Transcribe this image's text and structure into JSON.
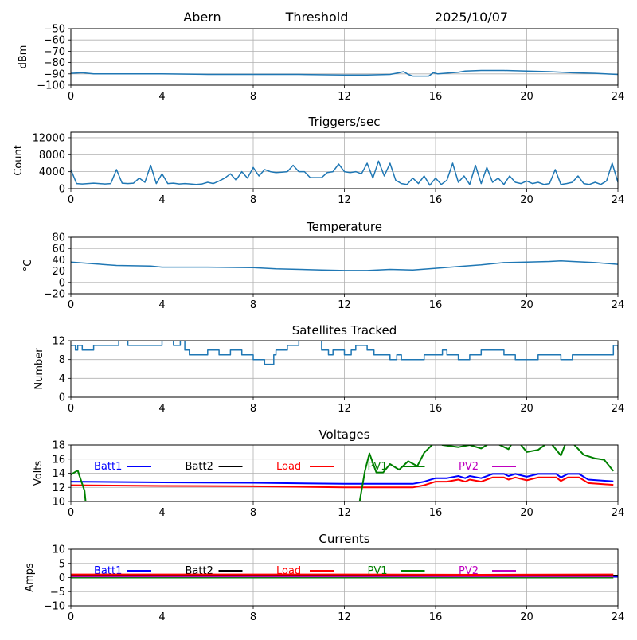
{
  "header": {
    "station": "Abern",
    "mode": "Threshold",
    "date": "2025/10/07"
  },
  "chart_data": [
    {
      "type": "line",
      "title": "",
      "ylabel": "dBm",
      "xlabel": "",
      "xlim": [
        0,
        24
      ],
      "ylim": [
        -100,
        -50
      ],
      "xticks": [
        0,
        4,
        8,
        12,
        16,
        20,
        24
      ],
      "yticks": [
        -100,
        -90,
        -80,
        -70,
        -60,
        -50
      ],
      "ytick_labels": [
        "−100",
        "−90",
        "−80",
        "−70",
        "−60",
        "−50"
      ],
      "grid": true,
      "series": [
        {
          "name": "Threshold",
          "color": "#1f77b4",
          "x": [
            0,
            0.5,
            1,
            2,
            4,
            6,
            8,
            10,
            12,
            13,
            14,
            14.4,
            14.6,
            14.8,
            15,
            15.7,
            15.9,
            16.1,
            17,
            17.3,
            18,
            19,
            20,
            21,
            22,
            23,
            24
          ],
          "y": [
            -89.5,
            -89,
            -90,
            -90,
            -90,
            -90.5,
            -90.5,
            -90.5,
            -91,
            -91,
            -90.5,
            -89,
            -88,
            -90.5,
            -92,
            -92,
            -89,
            -90,
            -88.5,
            -87.5,
            -87,
            -87,
            -87.5,
            -88,
            -89,
            -89.5,
            -90.5
          ]
        }
      ]
    },
    {
      "type": "line",
      "title": "Triggers/sec",
      "ylabel": "Count",
      "xlabel": "",
      "xlim": [
        0,
        24
      ],
      "ylim": [
        0,
        13300
      ],
      "xticks": [
        0,
        4,
        8,
        12,
        16,
        20,
        24
      ],
      "yticks": [
        0,
        4000,
        8000,
        12000
      ],
      "ytick_labels": [
        "0",
        "4000",
        "8000",
        "12000"
      ],
      "grid": true,
      "series": [
        {
          "name": "Triggers",
          "color": "#1f77b4",
          "step": 0.25,
          "y": [
            4500,
            1200,
            1100,
            1200,
            1300,
            1200,
            1100,
            1200,
            4500,
            1300,
            1200,
            1300,
            2500,
            1500,
            5500,
            1200,
            3500,
            1200,
            1300,
            1100,
            1200,
            1100,
            1000,
            1100,
            1500,
            1200,
            1800,
            2500,
            3500,
            2000,
            4000,
            2500,
            5000,
            3000,
            4500,
            4000,
            3800,
            3900,
            4000,
            5500,
            4000,
            4000,
            2600,
            2600,
            2600,
            3800,
            4000,
            5800,
            4000,
            3800,
            4000,
            3500,
            6000,
            2500,
            6500,
            3000,
            6000,
            2000,
            1200,
            1000,
            2500,
            1200,
            3000,
            800,
            2500,
            1000,
            2000,
            6000,
            1500,
            3000,
            1000,
            5500,
            1200,
            5000,
            1500,
            2500,
            1000,
            3000,
            1500,
            1200,
            1800,
            1200,
            1500,
            1000,
            1200,
            4500,
            1000,
            1200,
            1500,
            3000,
            1200,
            1000,
            1500,
            1000,
            1800,
            6000,
            1500
          ]
        }
      ]
    },
    {
      "type": "line",
      "title": "Temperature",
      "ylabel": "°C",
      "xlabel": "",
      "xlim": [
        0,
        24
      ],
      "ylim": [
        -20,
        80
      ],
      "xticks": [
        0,
        4,
        8,
        12,
        16,
        20,
        24
      ],
      "yticks": [
        -20,
        0,
        20,
        40,
        60,
        80
      ],
      "ytick_labels": [
        "−20",
        "0",
        "20",
        "40",
        "60",
        "80"
      ],
      "grid": true,
      "series": [
        {
          "name": "Temperature",
          "color": "#1f77b4",
          "x": [
            0,
            1,
            2,
            3.5,
            4,
            6,
            8,
            9,
            11,
            12,
            13,
            14,
            15,
            16,
            17,
            18,
            19,
            20,
            21,
            21.5,
            22,
            23,
            24
          ],
          "y": [
            36,
            33,
            30,
            29,
            27,
            27,
            26,
            24,
            22,
            21,
            21,
            23,
            22,
            25,
            28,
            31,
            35,
            36,
            37,
            38,
            37,
            35,
            32
          ]
        }
      ]
    },
    {
      "type": "line",
      "title": "Satellites Tracked",
      "ylabel": "Number",
      "xlabel": "",
      "xlim": [
        0,
        24
      ],
      "ylim": [
        0,
        12
      ],
      "xticks": [
        0,
        4,
        8,
        12,
        16,
        20,
        24
      ],
      "yticks": [
        0,
        4,
        8,
        12
      ],
      "ytick_labels": [
        "0",
        "4",
        "8",
        "12"
      ],
      "grid": true,
      "series": [
        {
          "name": "Satellites",
          "color": "#1f77b4",
          "stepwise": true,
          "x": [
            0,
            0.2,
            0.3,
            0.5,
            1,
            2,
            2.1,
            2.5,
            3,
            3.8,
            4,
            4.5,
            4.8,
            5,
            5.2,
            6,
            6.5,
            7,
            7.5,
            8,
            8.5,
            8.9,
            9,
            9.5,
            10,
            11,
            11.3,
            11.5,
            12,
            12.3,
            12.5,
            13,
            13.3,
            14,
            14.3,
            14.5,
            15,
            15.5,
            16,
            16.3,
            16.5,
            17,
            17.5,
            18,
            18.5,
            19,
            19.5,
            20,
            20.5,
            21,
            21.5,
            22,
            22.5,
            23,
            23.8,
            24
          ],
          "y": [
            11,
            10,
            11,
            10,
            11,
            11,
            12,
            11,
            11,
            11,
            12,
            11,
            12,
            10,
            9,
            10,
            9,
            10,
            9,
            8,
            7,
            9,
            10,
            11,
            12,
            10,
            9,
            10,
            9,
            10,
            11,
            10,
            9,
            8,
            9,
            8,
            8,
            9,
            9,
            10,
            9,
            8,
            9,
            10,
            10,
            9,
            8,
            8,
            9,
            9,
            8,
            9,
            9,
            9,
            11,
            10
          ]
        }
      ]
    },
    {
      "type": "line",
      "title": "Voltages",
      "ylabel": "Volts",
      "xlabel": "",
      "xlim": [
        0,
        24
      ],
      "ylim": [
        10,
        18
      ],
      "xticks": [
        0,
        4,
        8,
        12,
        16,
        20,
        24
      ],
      "yticks": [
        10,
        12,
        14,
        16,
        18
      ],
      "ytick_labels": [
        "10",
        "12",
        "14",
        "16",
        "18"
      ],
      "grid": true,
      "legend": "top, single row",
      "series": [
        {
          "name": "Batt1",
          "color": "#0000ff",
          "x": [
            0,
            4,
            8,
            12,
            15,
            15.5,
            16,
            16.5,
            17,
            17.3,
            17.5,
            18,
            18.5,
            19,
            19.2,
            19.5,
            20,
            20.5,
            21,
            21.3,
            21.5,
            21.8,
            22.3,
            22.7,
            23.8
          ],
          "y": [
            12.8,
            12.7,
            12.65,
            12.5,
            12.5,
            12.8,
            13.3,
            13.3,
            13.6,
            13.3,
            13.6,
            13.3,
            13.9,
            13.9,
            13.6,
            13.9,
            13.5,
            13.9,
            13.9,
            13.9,
            13.4,
            13.9,
            13.9,
            13.1,
            12.85
          ]
        },
        {
          "name": "Batt2",
          "color": "#000000",
          "x": [],
          "y": []
        },
        {
          "name": "Load",
          "color": "#ff0000",
          "x": [
            0,
            4,
            8,
            12,
            15,
            15.5,
            16,
            16.5,
            17,
            17.3,
            17.5,
            18,
            18.5,
            19,
            19.2,
            19.5,
            20,
            20.5,
            21,
            21.3,
            21.5,
            21.8,
            22.3,
            22.7,
            23.8
          ],
          "y": [
            12.3,
            12.2,
            12.15,
            12.0,
            12.0,
            12.3,
            12.8,
            12.8,
            13.1,
            12.8,
            13.1,
            12.8,
            13.4,
            13.4,
            13.1,
            13.4,
            13.0,
            13.4,
            13.4,
            13.4,
            12.9,
            13.4,
            13.4,
            12.6,
            12.35
          ]
        },
        {
          "name": "PV1",
          "color": "#008000",
          "x": [
            0,
            0.3,
            0.6,
            0.8,
            12.4,
            12.9,
            13.1,
            13.4,
            13.7,
            14,
            14.4,
            14.8,
            15.2,
            15.5,
            16,
            16.3,
            17,
            17.5,
            18,
            18.5,
            19.2,
            19.5,
            20,
            20.5,
            21,
            21.5,
            21.8,
            22.5,
            23,
            23.4,
            23.8
          ],
          "y": [
            13.8,
            14.4,
            11.5,
            5,
            5,
            14.3,
            16.8,
            14.1,
            14.1,
            15.3,
            14.5,
            15.7,
            15,
            16.9,
            18.5,
            18,
            17.7,
            18,
            17.5,
            18.5,
            17.4,
            19,
            17,
            17.3,
            18.5,
            16.5,
            19,
            16.6,
            16.1,
            15.9,
            14.3
          ]
        },
        {
          "name": "PV2",
          "color": "#bf00bf",
          "x": [],
          "y": []
        }
      ]
    },
    {
      "type": "line",
      "title": "Currents",
      "ylabel": "Amps",
      "xlabel": "",
      "xlim": [
        0,
        24
      ],
      "ylim": [
        -10,
        10
      ],
      "xticks": [
        0,
        4,
        8,
        12,
        16,
        20,
        24
      ],
      "yticks": [
        -10,
        -5,
        0,
        5,
        10
      ],
      "ytick_labels": [
        "−10",
        "−5",
        "0",
        "5",
        "10"
      ],
      "grid": true,
      "legend": "top, single row",
      "series": [
        {
          "name": "Batt1",
          "color": "#0000ff",
          "x": [
            0,
            24
          ],
          "y": [
            0.3,
            0.3
          ]
        },
        {
          "name": "Batt2",
          "color": "#000000",
          "x": [
            0,
            24
          ],
          "y": [
            0.7,
            0.7
          ]
        },
        {
          "name": "Load",
          "color": "#ff0000",
          "x": [
            0,
            6,
            12,
            18,
            23.8
          ],
          "y": [
            1.1,
            1.1,
            1.1,
            1.0,
            1.1
          ]
        },
        {
          "name": "PV1",
          "color": "#008000",
          "x": [
            0,
            23.8
          ],
          "y": [
            0,
            0
          ]
        },
        {
          "name": "PV2",
          "color": "#bf00bf",
          "x": [
            0,
            23.8
          ],
          "y": [
            0.4,
            0.4
          ]
        }
      ]
    }
  ]
}
